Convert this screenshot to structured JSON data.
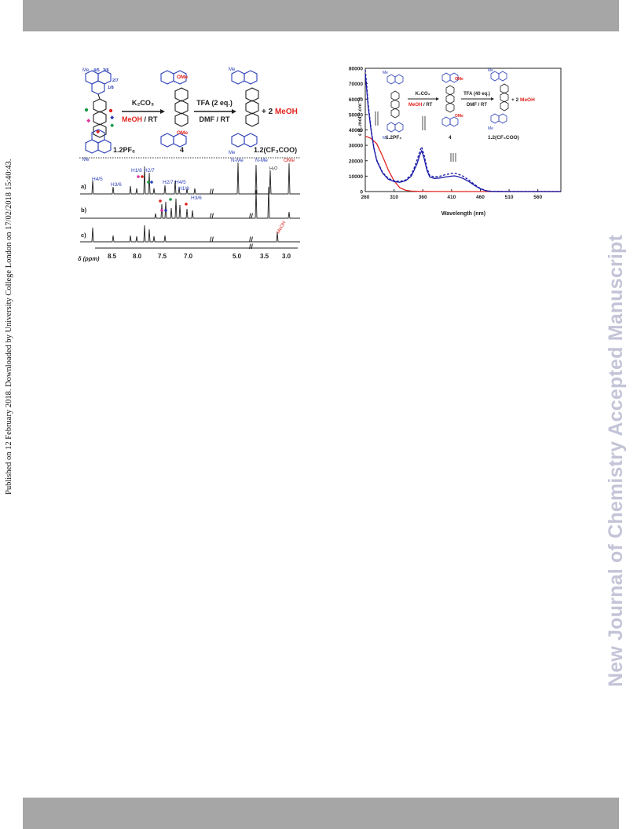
{
  "side_note": "Published on 12 February 2018. Downloaded by University College London on 17/02/2018 15:40:43.",
  "watermark": "New Journal of Chemistry Accepted Manuscript",
  "left_figure": {
    "scheme": {
      "reagent1_top": "K₂CO₃",
      "reagent1_bottom_red": "MeOH",
      "reagent1_bottom_rest": " / RT",
      "reagent2_top": "TFA (2 eq.)",
      "reagent2_bottom": "DMF / RT",
      "product_extra_prefix": "+ 2 ",
      "product_extra_red": "MeOH",
      "label_start": "1.2PF₆",
      "label_mid": "4",
      "label_end": "1.2(CF₃COO)",
      "me": "Me",
      "ome": "OMe",
      "proton_labels": [
        "4/5",
        "3/6",
        "2/7",
        "1/8"
      ]
    },
    "spectra": {
      "trace_labels": [
        "a)",
        "b)",
        "c)"
      ],
      "peak_labels": [
        "H4/5",
        "H3/6",
        "H1/8",
        "H2/7",
        "H2/7",
        "H4/5",
        "H1/8",
        "H3/6",
        "N-Me",
        "N-Me",
        "OMe"
      ],
      "solvent_labels": [
        "H₂O",
        "MeOH"
      ],
      "axis_label": "δ (ppm)",
      "ticks": [
        "8.5",
        "8.0",
        "7.5",
        "7.0",
        "5.0",
        "3.5",
        "3.0"
      ],
      "break_mark": "//"
    },
    "colors": {
      "blue": "#2b3fb7",
      "red": "#e0231e",
      "green": "#1a9a46",
      "magenta": "#e0349c",
      "dark": "#1f1f1f"
    }
  },
  "right_figure": {
    "scheme": {
      "reagent1_top": "K₂CO₃",
      "reagent1_bottom_red": "MeOH",
      "reagent1_bottom_rest": " / RT",
      "reagent2_top": "TFA (40 eq.)",
      "reagent2_bottom": "DMF / RT",
      "product_extra_prefix": "+ 2 ",
      "product_extra_red": "MeOH",
      "label_start": "1.2PF₆",
      "label_mid": "4",
      "label_end": "1.2(CF₃COO)",
      "me": "Me",
      "ome": "OMe"
    },
    "chart_data": {
      "type": "line",
      "xlabel": "Wavelength (nm)",
      "ylabel": "ε (L.mol⁻¹.cm⁻¹)",
      "xlim": [
        260,
        600
      ],
      "ylim": [
        0,
        80000
      ],
      "xticks": [
        260,
        310,
        360,
        410,
        460,
        510,
        560
      ],
      "yticks": [
        0,
        10000,
        20000,
        30000,
        40000,
        50000,
        60000,
        70000,
        80000
      ],
      "series": [
        {
          "color": "#e0231e",
          "style": "solid",
          "points": [
            [
              260,
              36000
            ],
            [
              270,
              34500
            ],
            [
              280,
              31000
            ],
            [
              290,
              23000
            ],
            [
              300,
              14000
            ],
            [
              310,
              7000
            ],
            [
              320,
              2500
            ],
            [
              330,
              800
            ],
            [
              340,
              300
            ],
            [
              350,
              150
            ],
            [
              360,
              100
            ],
            [
              380,
              50
            ],
            [
              420,
              20
            ],
            [
              460,
              0
            ],
            [
              600,
              0
            ]
          ]
        },
        {
          "color": "#1a1aa8",
          "style": "solid",
          "points": [
            [
              260,
              76000
            ],
            [
              262,
              68000
            ],
            [
              265,
              55000
            ],
            [
              270,
              40000
            ],
            [
              275,
              28000
            ],
            [
              280,
              20000
            ],
            [
              290,
              12000
            ],
            [
              300,
              8000
            ],
            [
              310,
              6500
            ],
            [
              320,
              6000
            ],
            [
              330,
              7000
            ],
            [
              340,
              10000
            ],
            [
              345,
              14000
            ],
            [
              350,
              18000
            ],
            [
              355,
              24000
            ],
            [
              358,
              26500
            ],
            [
              362,
              22000
            ],
            [
              367,
              14000
            ],
            [
              372,
              9500
            ],
            [
              380,
              8500
            ],
            [
              390,
              8800
            ],
            [
              400,
              9500
            ],
            [
              410,
              10000
            ],
            [
              415,
              10200
            ],
            [
              420,
              9800
            ],
            [
              430,
              8500
            ],
            [
              440,
              6500
            ],
            [
              450,
              4000
            ],
            [
              460,
              1800
            ],
            [
              470,
              500
            ],
            [
              480,
              100
            ],
            [
              500,
              0
            ],
            [
              600,
              0
            ]
          ]
        },
        {
          "color": "#1a1aa8",
          "style": "dashed",
          "points": [
            [
              260,
              79000
            ],
            [
              262,
              71000
            ],
            [
              265,
              57000
            ],
            [
              270,
              41000
            ],
            [
              275,
              28500
            ],
            [
              280,
              20500
            ],
            [
              290,
              12500
            ],
            [
              300,
              8500
            ],
            [
              310,
              7000
            ],
            [
              320,
              6500
            ],
            [
              330,
              7500
            ],
            [
              340,
              11000
            ],
            [
              345,
              15500
            ],
            [
              350,
              20500
            ],
            [
              355,
              26500
            ],
            [
              358,
              29000
            ],
            [
              362,
              24000
            ],
            [
              367,
              15500
            ],
            [
              372,
              10500
            ],
            [
              380,
              9500
            ],
            [
              390,
              10000
            ],
            [
              400,
              11000
            ],
            [
              410,
              11800
            ],
            [
              415,
              12000
            ],
            [
              420,
              11500
            ],
            [
              430,
              10000
            ],
            [
              440,
              7500
            ],
            [
              450,
              4600
            ],
            [
              460,
              2000
            ],
            [
              470,
              600
            ],
            [
              480,
              120
            ],
            [
              500,
              0
            ],
            [
              600,
              0
            ]
          ]
        }
      ]
    }
  }
}
